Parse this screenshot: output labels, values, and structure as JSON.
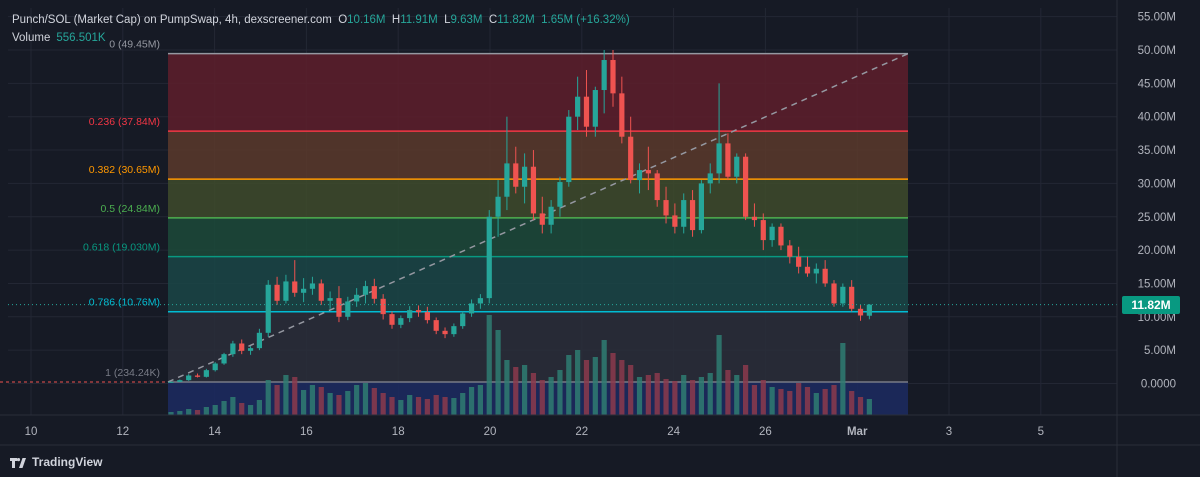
{
  "legend": {
    "symbol": "Punch/SOL (Market Cap) on PumpSwap, 4h, dexscreener.com",
    "o_label": "O",
    "o_value": "10.16M",
    "h_label": "H",
    "h_value": "11.91M",
    "l_label": "L",
    "l_value": "9.63M",
    "c_label": "C",
    "c_value": "11.82M",
    "change": "1.65M (+16.32%)",
    "volume_label": "Volume",
    "volume_value": "556.501K"
  },
  "price_tag": "11.82M",
  "brand": "TradingView",
  "colors": {
    "up": "#26a69a",
    "down": "#ef5350",
    "background": "#161a25",
    "grid": "#232734",
    "text": "#b2b5be"
  },
  "chart_data": {
    "type": "candlestick",
    "title": "Punch/SOL (Market Cap) on PumpSwap, 4h, dexscreener.com",
    "y_axis_ticks": [
      "55.00M",
      "50.00M",
      "45.00M",
      "40.00M",
      "35.00M",
      "30.00M",
      "25.00M",
      "20.00M",
      "15.00M",
      "10.00M",
      "5.00M",
      "0.0000"
    ],
    "y_tick_values": [
      55,
      50,
      45,
      40,
      35,
      30,
      25,
      20,
      15,
      10,
      5,
      0
    ],
    "ylim": [
      0,
      55
    ],
    "x_axis_ticks": [
      "10",
      "12",
      "14",
      "16",
      "18",
      "20",
      "22",
      "24",
      "26",
      "Mar",
      "3",
      "5"
    ],
    "last_value": 11.82,
    "fibonacci": [
      {
        "label": "0 (49.45M)",
        "value": 49.45,
        "color": "#9598a1"
      },
      {
        "label": "0.236 (37.84M)",
        "value": 37.84,
        "color": "#f23645"
      },
      {
        "label": "0.382 (30.65M)",
        "value": 30.65,
        "color": "#ff9800"
      },
      {
        "label": "0.5 (24.84M)",
        "value": 24.84,
        "color": "#4caf50"
      },
      {
        "label": "0.618 (19.030M)",
        "value": 19.03,
        "color": "#089981"
      },
      {
        "label": "0.786 (10.76M)",
        "value": 10.76,
        "color": "#00bcd4"
      },
      {
        "label": "1 (234.24K)",
        "value": 0.234,
        "color": "#787b86"
      }
    ],
    "candles": [
      [
        0.2,
        0.3,
        0.1,
        0.25
      ],
      [
        0.25,
        0.6,
        0.2,
        0.5
      ],
      [
        0.5,
        1.4,
        0.4,
        1.2
      ],
      [
        1.2,
        1.5,
        0.9,
        1.0
      ],
      [
        1.0,
        2.2,
        0.9,
        2.0
      ],
      [
        2.0,
        3.2,
        1.8,
        3.0
      ],
      [
        3.0,
        4.6,
        2.8,
        4.4
      ],
      [
        4.4,
        6.4,
        4.0,
        6.0
      ],
      [
        6.0,
        6.6,
        4.4,
        4.9
      ],
      [
        4.9,
        5.6,
        4.3,
        5.3
      ],
      [
        5.3,
        8.2,
        5.0,
        7.6
      ],
      [
        7.6,
        15.5,
        7.0,
        14.8
      ],
      [
        14.8,
        16.0,
        11.8,
        12.4
      ],
      [
        12.4,
        16.3,
        12.0,
        15.3
      ],
      [
        15.3,
        18.5,
        13.0,
        13.6
      ],
      [
        13.6,
        15.8,
        12.2,
        14.2
      ],
      [
        14.2,
        16.0,
        13.3,
        15.0
      ],
      [
        15.0,
        15.6,
        11.8,
        12.4
      ],
      [
        12.4,
        13.8,
        11.2,
        12.8
      ],
      [
        12.8,
        14.6,
        9.2,
        10.0
      ],
      [
        10.0,
        13.0,
        9.5,
        12.3
      ],
      [
        12.3,
        14.3,
        11.5,
        13.3
      ],
      [
        13.3,
        15.4,
        12.0,
        14.6
      ],
      [
        14.6,
        15.7,
        12.0,
        12.7
      ],
      [
        12.7,
        13.4,
        9.6,
        10.4
      ],
      [
        10.4,
        10.8,
        8.2,
        8.8
      ],
      [
        8.8,
        10.2,
        8.3,
        9.8
      ],
      [
        9.8,
        11.6,
        9.2,
        11.0
      ],
      [
        11.0,
        11.7,
        10.0,
        10.7
      ],
      [
        10.7,
        11.5,
        9.0,
        9.5
      ],
      [
        9.5,
        9.9,
        7.4,
        7.9
      ],
      [
        7.9,
        8.4,
        6.8,
        7.4
      ],
      [
        7.4,
        9.0,
        7.0,
        8.6
      ],
      [
        8.6,
        10.8,
        8.2,
        10.5
      ],
      [
        10.5,
        12.6,
        10.0,
        12.0
      ],
      [
        12.0,
        13.4,
        11.2,
        12.8
      ],
      [
        12.8,
        26.0,
        12.0,
        25.0
      ],
      [
        25.0,
        30.5,
        22.0,
        28.0
      ],
      [
        28.0,
        40.0,
        26.0,
        33.0
      ],
      [
        33.0,
        35.5,
        28.5,
        29.5
      ],
      [
        29.5,
        34.5,
        27.0,
        32.5
      ],
      [
        32.5,
        35.0,
        24.5,
        25.5
      ],
      [
        25.5,
        28.0,
        22.5,
        23.8
      ],
      [
        23.8,
        27.5,
        22.5,
        26.5
      ],
      [
        26.5,
        31.0,
        25.0,
        30.2
      ],
      [
        30.2,
        41.0,
        29.5,
        40.0
      ],
      [
        40.0,
        46.0,
        38.0,
        43.0
      ],
      [
        43.0,
        47.0,
        37.0,
        38.5
      ],
      [
        38.5,
        44.5,
        37.0,
        44.0
      ],
      [
        44.0,
        50.0,
        40.5,
        48.5
      ],
      [
        48.5,
        50.0,
        41.5,
        43.5
      ],
      [
        43.5,
        46.0,
        36.0,
        37.0
      ],
      [
        37.0,
        40.0,
        30.0,
        30.5
      ],
      [
        30.5,
        33.0,
        28.5,
        32.0
      ],
      [
        32.0,
        35.5,
        29.0,
        31.5
      ],
      [
        31.5,
        32.0,
        26.5,
        27.5
      ],
      [
        27.5,
        29.5,
        24.0,
        25.2
      ],
      [
        25.2,
        27.0,
        22.5,
        23.5
      ],
      [
        23.5,
        28.5,
        22.5,
        27.5
      ],
      [
        27.5,
        29.0,
        22.0,
        23.0
      ],
      [
        23.0,
        30.5,
        22.5,
        30.0
      ],
      [
        30.0,
        33.0,
        28.5,
        31.5
      ],
      [
        31.5,
        45.0,
        30.0,
        36.0
      ],
      [
        36.0,
        37.5,
        30.5,
        31.0
      ],
      [
        31.0,
        34.5,
        30.0,
        34.0
      ],
      [
        34.0,
        34.5,
        24.5,
        25.0
      ],
      [
        25.0,
        27.0,
        23.5,
        24.5
      ],
      [
        24.5,
        25.5,
        20.0,
        21.5
      ],
      [
        21.5,
        24.0,
        20.5,
        23.5
      ],
      [
        23.5,
        24.0,
        20.0,
        20.7
      ],
      [
        20.7,
        21.5,
        18.0,
        19.0
      ],
      [
        19.0,
        20.5,
        16.5,
        17.5
      ],
      [
        17.5,
        19.0,
        16.0,
        16.5
      ],
      [
        16.5,
        18.0,
        15.0,
        17.2
      ],
      [
        17.2,
        18.5,
        14.5,
        15.0
      ],
      [
        15.0,
        15.5,
        11.5,
        12.0
      ],
      [
        12.0,
        15.0,
        11.5,
        14.5
      ],
      [
        14.5,
        15.5,
        10.8,
        11.2
      ],
      [
        11.2,
        11.8,
        9.4,
        10.2
      ],
      [
        10.16,
        11.91,
        9.63,
        11.82
      ]
    ],
    "volumes": [
      0.03,
      0.04,
      0.06,
      0.05,
      0.08,
      0.1,
      0.14,
      0.18,
      0.12,
      0.1,
      0.15,
      0.35,
      0.3,
      0.4,
      0.38,
      0.25,
      0.3,
      0.28,
      0.22,
      0.2,
      0.24,
      0.3,
      0.32,
      0.27,
      0.22,
      0.18,
      0.15,
      0.2,
      0.18,
      0.16,
      0.2,
      0.18,
      0.17,
      0.22,
      0.28,
      0.3,
      1.0,
      0.85,
      0.55,
      0.48,
      0.5,
      0.42,
      0.35,
      0.38,
      0.45,
      0.6,
      0.65,
      0.55,
      0.58,
      0.75,
      0.62,
      0.55,
      0.5,
      0.38,
      0.4,
      0.42,
      0.36,
      0.34,
      0.4,
      0.35,
      0.38,
      0.42,
      0.8,
      0.45,
      0.4,
      0.5,
      0.3,
      0.35,
      0.28,
      0.26,
      0.24,
      0.32,
      0.28,
      0.22,
      0.26,
      0.3,
      0.72,
      0.24,
      0.18,
      0.16
    ]
  }
}
